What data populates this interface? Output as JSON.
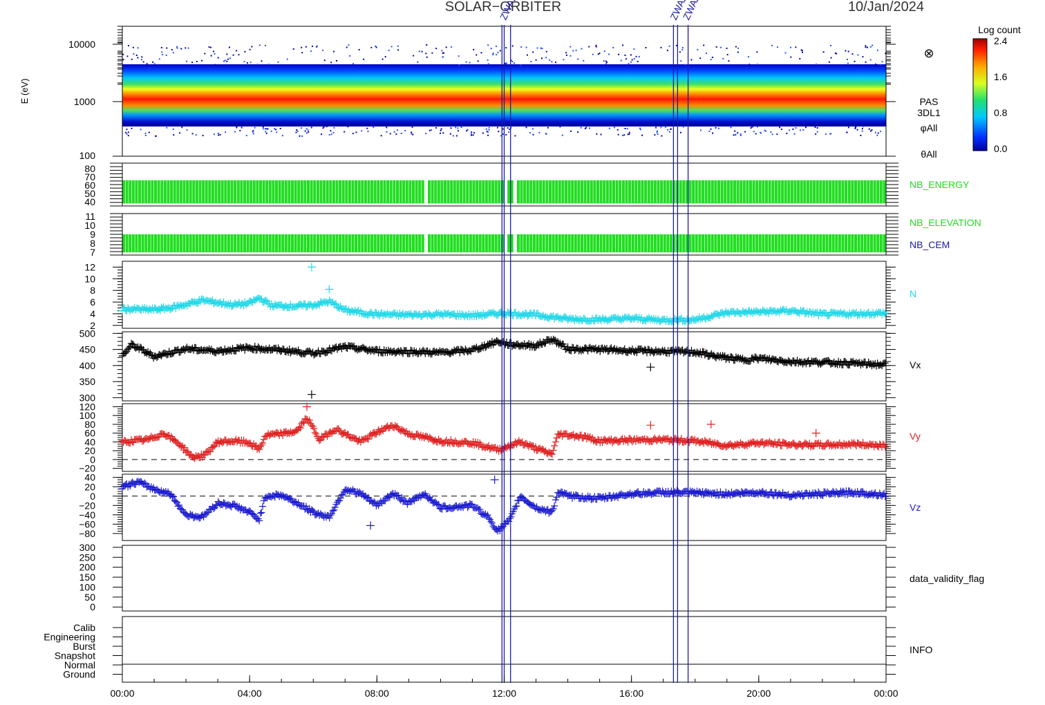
{
  "header": {
    "mission": "SOLAR−ORBITER",
    "date": "10/Jan/2024"
  },
  "colorbar": {
    "title": "Log count",
    "ticks": [
      "2.4",
      "1.6",
      "0.8",
      "0.0"
    ]
  },
  "event_markers": {
    "color": "#1a1aa6",
    "labels_a": "ZWAZ",
    "labels_b": "ZWAZ"
  },
  "time_axis": {
    "labels": [
      "00:00",
      "04:00",
      "08:00",
      "12:00",
      "16:00",
      "20:00",
      "00:00"
    ]
  },
  "chart_data": [
    {
      "type": "heatmap",
      "ylabel": "E (eV)",
      "ytick_labels": [
        "10000",
        "1000",
        "100"
      ],
      "yscale": "log",
      "ylim": [
        100,
        15000
      ],
      "zlim": [
        0.0,
        2.4
      ],
      "peak_energy_eV": [
        {
          "t": 0,
          "E": 1000
        },
        {
          "t": 12,
          "E": 1050
        },
        {
          "t": 13.5,
          "E": 950
        },
        {
          "t": 18.8,
          "E": 900
        },
        {
          "t": 24,
          "E": 900
        }
      ],
      "side_labels": [
        "PAS",
        "3DL1",
        "φAll",
        "θAll"
      ],
      "symbol": "⊗"
    },
    {
      "type": "bar",
      "name": "NB_ENERGY",
      "color": "#22dd22",
      "ytick_labels": [
        "80",
        "70",
        "60",
        "50",
        "40"
      ],
      "ylim": [
        35,
        85
      ],
      "band": [
        38,
        65
      ],
      "gaps": [
        9.5,
        12.0,
        12.3
      ]
    },
    {
      "type": "bar",
      "name": "NB_ELEVATION",
      "color": "#22dd22",
      "second_label": "NB_CEM",
      "second_color": "#1a1aa6",
      "ytick_labels": [
        "11",
        "10",
        "9",
        "8",
        "7"
      ],
      "ylim": [
        6.7,
        11.3
      ],
      "band": [
        7,
        9
      ],
      "gaps": [
        9.5,
        12.0,
        12.3
      ]
    },
    {
      "type": "scatter",
      "name": "N",
      "color": "#22d8e8",
      "ytick_labels": [
        "12",
        "10",
        "8",
        "6",
        "4",
        "2"
      ],
      "ylim": [
        1.5,
        13
      ],
      "points": [
        [
          0,
          4.8
        ],
        [
          1,
          4.7
        ],
        [
          1.5,
          5.0
        ],
        [
          2,
          5.6
        ],
        [
          2.5,
          6.3
        ],
        [
          3,
          5.9
        ],
        [
          3.5,
          5.5
        ],
        [
          4,
          5.8
        ],
        [
          4.3,
          6.7
        ],
        [
          4.7,
          5.4
        ],
        [
          5.5,
          5.3
        ],
        [
          6,
          5.5
        ],
        [
          6.5,
          6.1
        ],
        [
          7,
          4.6
        ],
        [
          7.5,
          4.2
        ],
        [
          8,
          3.9
        ],
        [
          9,
          3.8
        ],
        [
          10,
          3.9
        ],
        [
          11,
          3.7
        ],
        [
          12,
          4.1
        ],
        [
          13,
          3.8
        ],
        [
          14,
          3.1
        ],
        [
          15,
          3.0
        ],
        [
          16,
          3.2
        ],
        [
          17,
          2.9
        ],
        [
          18,
          3.0
        ],
        [
          19,
          4.2
        ],
        [
          20,
          4.3
        ],
        [
          21,
          4.5
        ],
        [
          22,
          3.9
        ],
        [
          23,
          4.0
        ],
        [
          24,
          4.1
        ]
      ],
      "outliers": [
        [
          5.95,
          12
        ],
        [
          6.5,
          8.2
        ]
      ]
    },
    {
      "type": "scatter",
      "name": "Vx",
      "color": "#000000",
      "ytick_labels": [
        "500",
        "450",
        "400",
        "350",
        "300"
      ],
      "ylim": [
        290,
        505
      ],
      "points": [
        [
          0,
          430
        ],
        [
          0.3,
          465
        ],
        [
          1,
          428
        ],
        [
          2,
          452
        ],
        [
          3,
          445
        ],
        [
          4,
          455
        ],
        [
          5,
          448
        ],
        [
          6,
          438
        ],
        [
          7,
          458
        ],
        [
          8,
          445
        ],
        [
          9,
          443
        ],
        [
          10,
          440
        ],
        [
          11,
          448
        ],
        [
          11.8,
          475
        ],
        [
          12.2,
          465
        ],
        [
          13,
          462
        ],
        [
          13.5,
          482
        ],
        [
          14,
          452
        ],
        [
          15,
          450
        ],
        [
          16,
          446
        ],
        [
          17,
          444
        ],
        [
          18,
          442
        ],
        [
          18.7,
          428
        ],
        [
          19.5,
          418
        ],
        [
          20,
          422
        ],
        [
          21,
          412
        ],
        [
          22,
          410
        ],
        [
          23,
          407
        ],
        [
          24,
          402
        ]
      ],
      "outliers": [
        [
          5.95,
          310
        ],
        [
          16.6,
          395
        ]
      ]
    },
    {
      "type": "scatter",
      "name": "Vy",
      "color": "#e02020",
      "ytick_labels": [
        "120",
        "100",
        "80",
        "60",
        "40",
        "20",
        "0",
        "−20"
      ],
      "ylim": [
        -27,
        127
      ],
      "zero_line": true,
      "points": [
        [
          0,
          40
        ],
        [
          0.8,
          45
        ],
        [
          1.3,
          60
        ],
        [
          1.8,
          35
        ],
        [
          2.2,
          5
        ],
        [
          2.6,
          10
        ],
        [
          3,
          40
        ],
        [
          3.5,
          42
        ],
        [
          4,
          38
        ],
        [
          4.3,
          22
        ],
        [
          4.5,
          55
        ],
        [
          5,
          58
        ],
        [
          5.5,
          65
        ],
        [
          5.8,
          95
        ],
        [
          6.2,
          45
        ],
        [
          6.7,
          70
        ],
        [
          7,
          58
        ],
        [
          7.5,
          40
        ],
        [
          8,
          62
        ],
        [
          8.5,
          78
        ],
        [
          9,
          58
        ],
        [
          10,
          42
        ],
        [
          11,
          38
        ],
        [
          11.8,
          22
        ],
        [
          12.5,
          40
        ],
        [
          13,
          25
        ],
        [
          13.5,
          12
        ],
        [
          13.7,
          58
        ],
        [
          14.5,
          52
        ],
        [
          15,
          42
        ],
        [
          16,
          44
        ],
        [
          17,
          45
        ],
        [
          18,
          42
        ],
        [
          19,
          32
        ],
        [
          20,
          38
        ],
        [
          21,
          34
        ],
        [
          22,
          33
        ],
        [
          23,
          35
        ],
        [
          24,
          32
        ]
      ],
      "outliers": [
        [
          16.6,
          78
        ],
        [
          18.5,
          80
        ],
        [
          21.8,
          60
        ],
        [
          5.8,
          120
        ]
      ]
    },
    {
      "type": "scatter",
      "name": "Vz",
      "color": "#1a1ad0",
      "ytick_labels": [
        "40",
        "20",
        "0",
        "−20",
        "−40",
        "−60",
        "−80"
      ],
      "ylim": [
        -95,
        47
      ],
      "zero_line": true,
      "points": [
        [
          0,
          20
        ],
        [
          0.5,
          30
        ],
        [
          1,
          15
        ],
        [
          1.5,
          5
        ],
        [
          2,
          -40
        ],
        [
          2.5,
          -45
        ],
        [
          3,
          -15
        ],
        [
          3.5,
          -20
        ],
        [
          4,
          -35
        ],
        [
          4.3,
          -50
        ],
        [
          4.5,
          0
        ],
        [
          5,
          2
        ],
        [
          5.5,
          -15
        ],
        [
          6,
          -35
        ],
        [
          6.5,
          -45
        ],
        [
          7,
          15
        ],
        [
          7.5,
          5
        ],
        [
          8,
          -20
        ],
        [
          8.5,
          5
        ],
        [
          9,
          -15
        ],
        [
          9.5,
          5
        ],
        [
          10,
          -25
        ],
        [
          11,
          -20
        ],
        [
          11.5,
          -45
        ],
        [
          11.8,
          -75
        ],
        [
          12.2,
          -50
        ],
        [
          12.5,
          0
        ],
        [
          13,
          -25
        ],
        [
          13.5,
          -35
        ],
        [
          13.7,
          10
        ],
        [
          14,
          0
        ],
        [
          15,
          -5
        ],
        [
          16,
          5
        ],
        [
          17,
          8
        ],
        [
          18,
          7
        ],
        [
          19,
          5
        ],
        [
          20,
          8
        ],
        [
          21,
          2
        ],
        [
          22,
          5
        ],
        [
          23,
          8
        ],
        [
          24,
          3
        ]
      ],
      "outliers": [
        [
          11.7,
          35
        ],
        [
          7.8,
          -63
        ]
      ]
    },
    {
      "type": "line",
      "name": "data_validity_flag",
      "ytick_labels": [
        "300",
        "250",
        "200",
        "150",
        "100",
        "50",
        "0"
      ],
      "ylim": [
        -20,
        310
      ],
      "points": []
    },
    {
      "type": "line",
      "name": "INFO",
      "ytick_labels": [
        "Calib",
        "Engineering",
        "Burst",
        "Snapshot",
        "Normal",
        "Ground"
      ],
      "state": "Normal"
    }
  ]
}
